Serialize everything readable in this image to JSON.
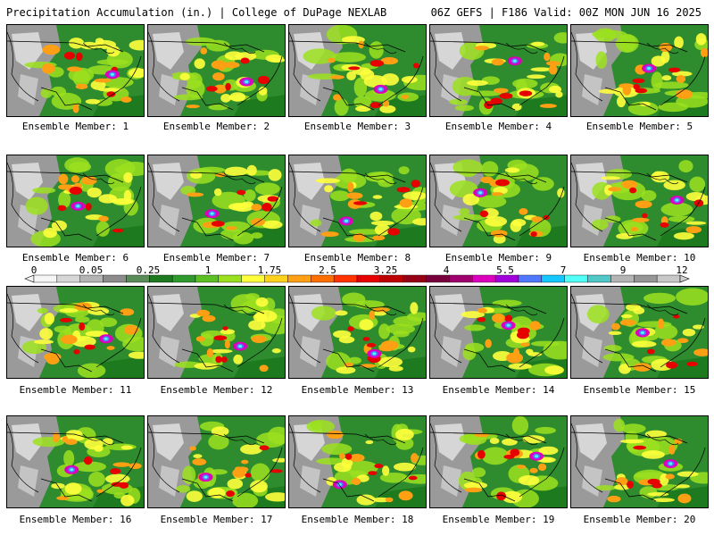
{
  "header": {
    "left_title": "Precipitation Accumulation (in.) | College of DuPage NEXLAB",
    "right_title": "06Z GEFS | F186 Valid: 00Z MON JUN 16 2025"
  },
  "members": [
    "Ensemble Member: 1",
    "Ensemble Member: 2",
    "Ensemble Member: 3",
    "Ensemble Member: 4",
    "Ensemble Member: 5",
    "Ensemble Member: 6",
    "Ensemble Member: 7",
    "Ensemble Member: 8",
    "Ensemble Member: 9",
    "Ensemble Member: 10",
    "Ensemble Member: 11",
    "Ensemble Member: 12",
    "Ensemble Member: 13",
    "Ensemble Member: 14",
    "Ensemble Member: 15",
    "Ensemble Member: 16",
    "Ensemble Member: 17",
    "Ensemble Member: 18",
    "Ensemble Member: 19",
    "Ensemble Member: 20"
  ],
  "colorbar": {
    "tick_labels": [
      "0",
      "0.05",
      "0.25",
      "1",
      "1.75",
      "2.5",
      "3.25",
      "4",
      "5.5",
      "7",
      "9",
      "12"
    ],
    "colors": [
      "#f5f5f5",
      "#d7d7d7",
      "#b4b4b4",
      "#8c8c8c",
      "#5a8c5a",
      "#1e7a1e",
      "#2e9a2e",
      "#5cbf23",
      "#9be01e",
      "#ffff3c",
      "#ffd21e",
      "#ffa014",
      "#ff6e00",
      "#ff3200",
      "#e60000",
      "#be0000",
      "#960014",
      "#78003c",
      "#a0006e",
      "#dc00be",
      "#a000dc",
      "#5078ff",
      "#14c8ff",
      "#50fff5",
      "#50c8c8",
      "#b4b4b4",
      "#969696",
      "#c8c8c8"
    ]
  }
}
